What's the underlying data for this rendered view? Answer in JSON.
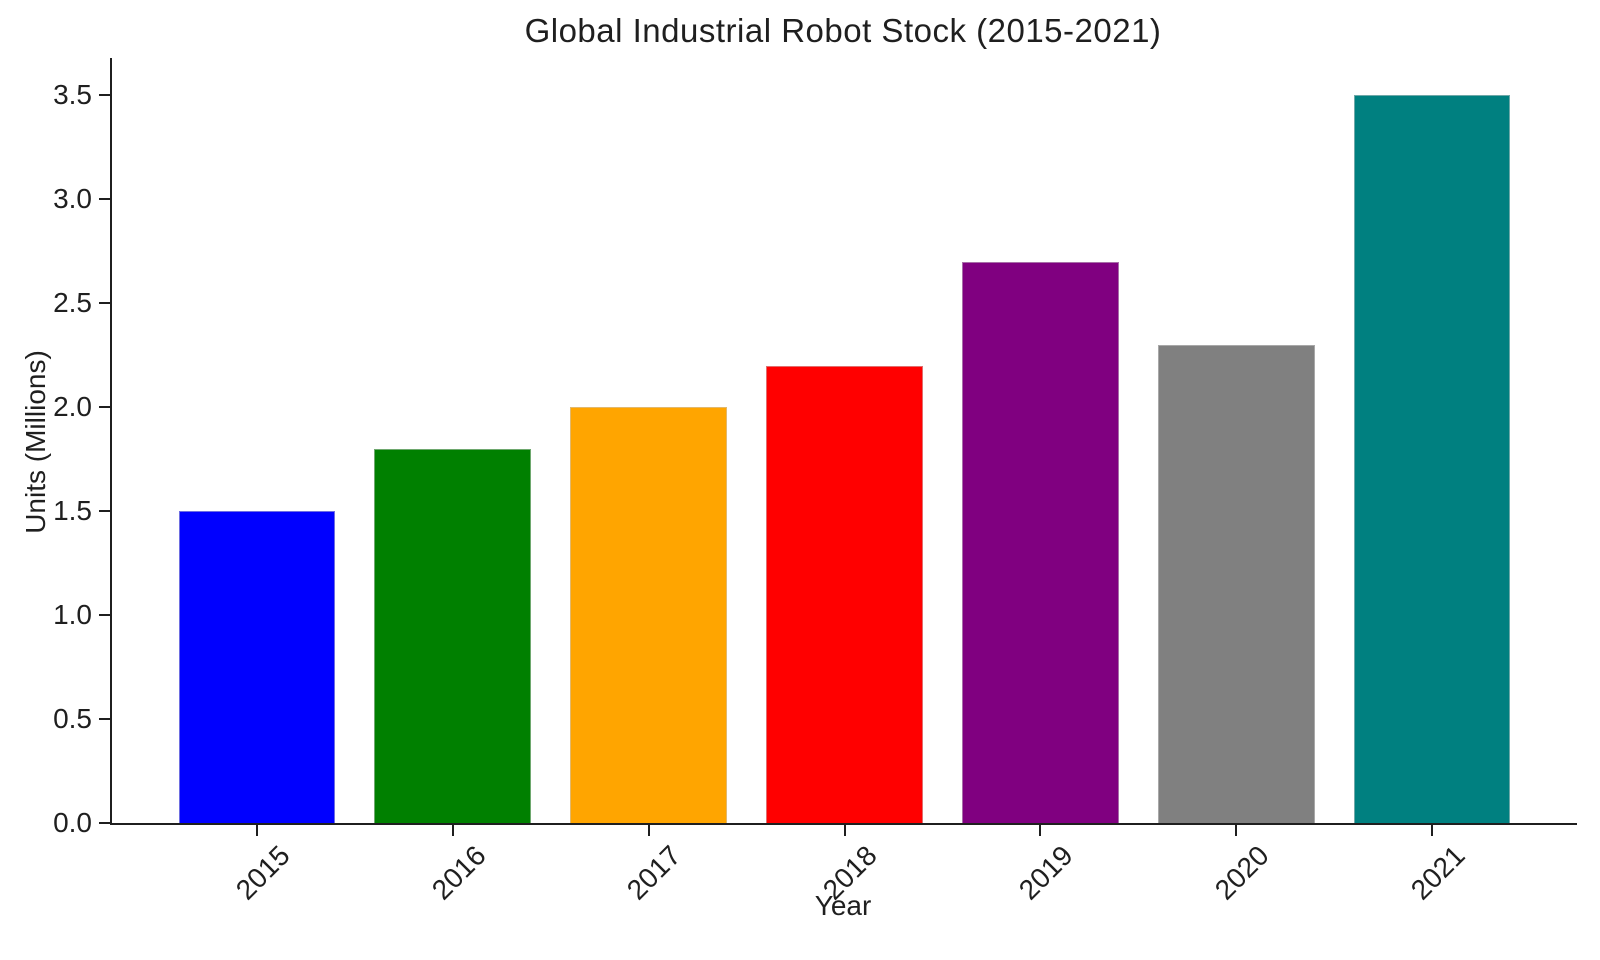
{
  "chart_data": {
    "type": "bar",
    "title": "Global Industrial Robot Stock (2015-2021)",
    "xlabel": "Year",
    "ylabel": "Units (Millions)",
    "categories": [
      "2015",
      "2016",
      "2017",
      "2018",
      "2019",
      "2020",
      "2021"
    ],
    "values": [
      1.5,
      1.8,
      2.0,
      2.2,
      2.7,
      2.3,
      3.5
    ],
    "bar_colors": [
      "#0000ff",
      "#008000",
      "#ffa500",
      "#ff0000",
      "#800080",
      "#808080",
      "#008080"
    ],
    "yticks": [
      0.0,
      0.5,
      1.0,
      1.5,
      2.0,
      2.5,
      3.0,
      3.5
    ],
    "ytick_labels": [
      "0.0",
      "0.5",
      "1.0",
      "1.5",
      "2.0",
      "2.5",
      "3.0",
      "3.5"
    ],
    "ylim": [
      0,
      3.68
    ],
    "xlim": [
      -0.74,
      6.74
    ],
    "bar_width_units": 0.8,
    "xtick_rotation_deg": 45,
    "grid": false,
    "legend": null,
    "text_color": "#1f1f1f",
    "background_color": "#ffffff"
  }
}
